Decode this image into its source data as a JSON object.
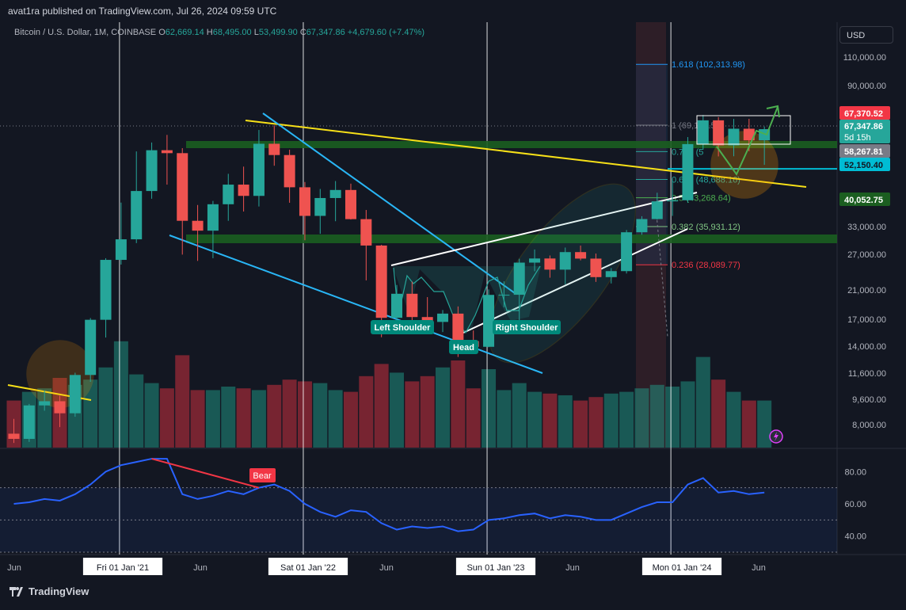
{
  "header": {
    "publisher": "avat1ra published on TradingView.com, Jul 26, 2024 09:59 UTC"
  },
  "legend": {
    "symbol": "Bitcoin / U.S. Dollar, 1M, COINBASE",
    "open_label": "O",
    "open": "62,669.14",
    "high_label": "H",
    "high": "68,495.00",
    "low_label": "L",
    "low": "53,499.90",
    "close_label": "C",
    "close": "67,347.86",
    "change": "+4,679.60 (+7.47%)"
  },
  "currency": "USD",
  "footer": {
    "brand": "TradingView"
  },
  "colors": {
    "bg": "#131722",
    "up": "#26a69a",
    "down": "#ef5350",
    "rsi": "#2962ff",
    "fib_band": "#1e3a5f"
  },
  "price_axis": {
    "ticks": [
      "110,000.00",
      "90,000.00",
      "67,370.52",
      "67,347.86",
      "58,267.81",
      "52,150.40",
      "40,052.75",
      "33,000.00",
      "27,000.00",
      "21,000.00",
      "17,000.00",
      "14,000.00",
      "11,600.00",
      "9,600.00",
      "8,000.00"
    ],
    "badges": {
      "high_price": "67,370.52",
      "close_price": "67,347.86",
      "countdown": "5d 15h",
      "prev": "58,267.81",
      "level": "52,150.40",
      "support": "40,052.75"
    }
  },
  "rsi_axis": {
    "ticks": [
      "80.00",
      "60.00",
      "40.00"
    ]
  },
  "time_axis": {
    "ticks": [
      "Jun",
      "Fri 01 Jan '21",
      "Jun",
      "Sat 01 Jan '22",
      "Jun",
      "Sun 01 Jan '23",
      "Jun",
      "Mon 01 Jan '24",
      "Jun"
    ]
  },
  "annotations": {
    "left_shoulder": "Left Shoulder",
    "head": "Head",
    "right_shoulder": "Right Shoulder",
    "bear": "Bear",
    "fib": [
      "1.618 (102,313.98)",
      "1 (69,122.55)",
      "0.786 (5",
      "0.618 (48,688.16)",
      "0.5 (43,268.64)",
      "0.382 (35,931.12)",
      "0.236 (28,089.77)"
    ]
  },
  "chart_data": {
    "type": "candlestick",
    "title": "Bitcoin / U.S. Dollar, 1M, COINBASE",
    "x_unit": "month",
    "months": [
      "2020-06",
      "2020-07",
      "2020-08",
      "2020-09",
      "2020-10",
      "2020-11",
      "2020-12",
      "2021-01",
      "2021-02",
      "2021-03",
      "2021-04",
      "2021-05",
      "2021-06",
      "2021-07",
      "2021-08",
      "2021-09",
      "2021-10",
      "2021-11",
      "2021-12",
      "2022-01",
      "2022-02",
      "2022-03",
      "2022-04",
      "2022-05",
      "2022-06",
      "2022-07",
      "2022-08",
      "2022-09",
      "2022-10",
      "2022-11",
      "2022-12",
      "2023-01",
      "2023-02",
      "2023-03",
      "2023-04",
      "2023-05",
      "2023-06",
      "2023-07",
      "2023-08",
      "2023-09",
      "2023-10",
      "2023-11",
      "2023-12",
      "2024-01",
      "2024-02",
      "2024-03",
      "2024-04",
      "2024-05",
      "2024-06",
      "2024-07"
    ],
    "open": [
      9450,
      9140,
      11340,
      11650,
      10780,
      13800,
      19700,
      28990,
      33100,
      45200,
      58800,
      57700,
      37300,
      35000,
      41500,
      47100,
      43800,
      61300,
      57000,
      46300,
      38500,
      43200,
      45500,
      37700,
      31800,
      19950,
      23300,
      20050,
      19430,
      20500,
      17170,
      16550,
      23130,
      23150,
      28480,
      29250,
      27220,
      30480,
      29230,
      25940,
      26960,
      34640,
      37720,
      42280,
      42580,
      61170,
      71300,
      60670,
      67540,
      62670
    ],
    "high": [
      10400,
      11450,
      12480,
      12080,
      14000,
      19920,
      29300,
      41950,
      58350,
      61800,
      64900,
      59600,
      41300,
      42400,
      50500,
      52900,
      67000,
      69000,
      59000,
      47900,
      45800,
      48200,
      47400,
      40000,
      31950,
      24650,
      25200,
      22800,
      20980,
      21470,
      18390,
      23960,
      25250,
      29200,
      31000,
      29820,
      31390,
      31800,
      30200,
      27490,
      35150,
      38420,
      44700,
      48970,
      64000,
      73800,
      72800,
      71950,
      72000,
      68495
    ],
    "low": [
      8900,
      8960,
      10960,
      9860,
      10540,
      13200,
      17570,
      28130,
      32300,
      43000,
      47100,
      30000,
      28800,
      29300,
      37300,
      39600,
      40900,
      53200,
      41900,
      32900,
      34300,
      37200,
      37600,
      25400,
      17600,
      18750,
      19500,
      18150,
      18200,
      15500,
      16260,
      16500,
      21350,
      19550,
      26940,
      25840,
      24760,
      28900,
      25150,
      24900,
      26550,
      34090,
      37580,
      38500,
      41880,
      59000,
      56500,
      56550,
      58400,
      53500
    ],
    "close": [
      9140,
      11340,
      11650,
      10780,
      13800,
      19700,
      28990,
      33100,
      45200,
      58800,
      57700,
      37300,
      35000,
      41500,
      47100,
      43800,
      61300,
      57000,
      46300,
      38500,
      43200,
      45500,
      37700,
      31800,
      19950,
      23300,
      20050,
      19430,
      20500,
      17170,
      16550,
      23130,
      23150,
      28480,
      29250,
      27220,
      30480,
      29230,
      25940,
      26960,
      34640,
      37720,
      42280,
      42580,
      61170,
      71300,
      60670,
      67540,
      62670,
      67347.86
    ],
    "volume": [
      0.27,
      0.32,
      0.34,
      0.4,
      0.36,
      0.39,
      0.46,
      0.61,
      0.42,
      0.37,
      0.34,
      0.53,
      0.33,
      0.33,
      0.35,
      0.34,
      0.33,
      0.36,
      0.39,
      0.38,
      0.37,
      0.33,
      0.32,
      0.41,
      0.48,
      0.43,
      0.38,
      0.41,
      0.46,
      0.5,
      0.34,
      0.45,
      0.33,
      0.37,
      0.32,
      0.31,
      0.3,
      0.27,
      0.29,
      0.31,
      0.32,
      0.34,
      0.36,
      0.35,
      0.38,
      0.52,
      0.39,
      0.32,
      0.27,
      0.27
    ],
    "rsi": [
      60,
      61,
      63,
      62,
      66,
      72,
      80,
      84,
      86,
      88,
      88,
      66,
      63,
      65,
      68,
      66,
      70,
      72,
      68,
      60,
      55,
      52,
      56,
      55,
      48,
      44,
      46,
      45,
      46,
      43,
      44,
      50,
      51,
      53,
      54,
      51,
      53,
      52,
      50,
      50,
      54,
      58,
      61,
      61,
      72,
      76,
      67,
      68,
      66,
      67
    ],
    "y_scale": "log",
    "ylim": [
      7800,
      125000
    ],
    "rsi_range": [
      30,
      90
    ],
    "fib_levels": [
      102313.98,
      69122.55,
      58267.81,
      48688.16,
      43268.64,
      35931.12,
      28089.77
    ],
    "horizontal_levels": [
      52150.4,
      40052.75
    ]
  }
}
